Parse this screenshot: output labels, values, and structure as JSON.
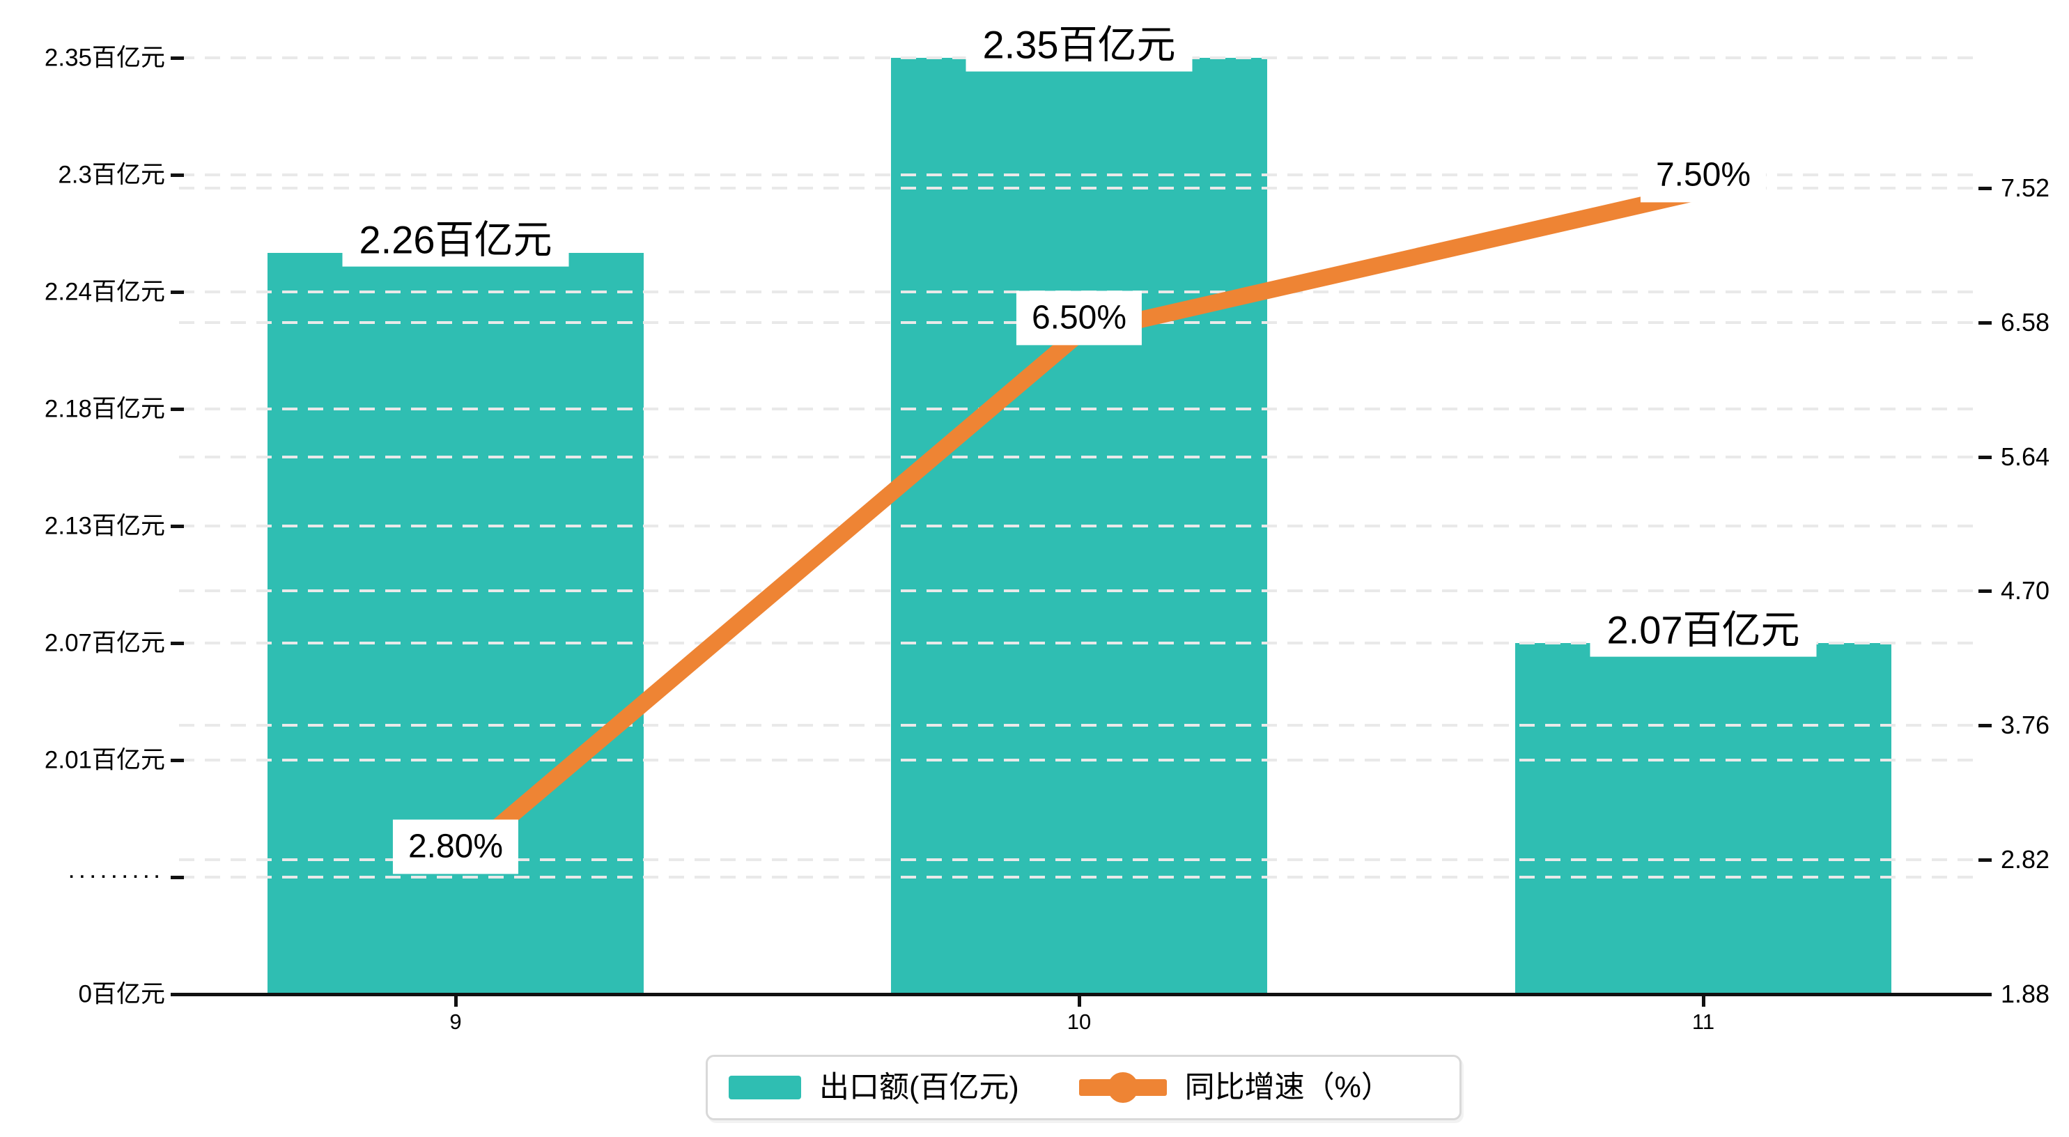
{
  "chart_data": {
    "type": "bar+line combo",
    "categories": [
      "9",
      "10",
      "11"
    ],
    "series": [
      {
        "name": "出口额(百亿元)",
        "type": "bar",
        "values": [
          2.26,
          2.35,
          2.07
        ],
        "data_labels": [
          "2.26百亿元",
          "2.35百亿元",
          "2.07百亿元"
        ],
        "color": "#2fbeb2",
        "axis": "left"
      },
      {
        "name": "同比增速（%）",
        "type": "line",
        "values": [
          2.8,
          6.5,
          7.5
        ],
        "data_labels": [
          "2.80%",
          "6.50%",
          "7.50%"
        ],
        "color": "#ee8434",
        "axis": "right"
      }
    ],
    "left_axis": {
      "tick_labels": [
        "2.35百亿元",
        "2.3百亿元",
        "2.24百亿元",
        "2.18百亿元",
        "2.13百亿元",
        "2.07百亿元",
        "2.01百亿元",
        "·········",
        "0百亿元"
      ],
      "tick_values": [
        2.35,
        2.3,
        2.24,
        2.18,
        2.13,
        2.07,
        2.01,
        null,
        0
      ],
      "has_break": true
    },
    "right_axis": {
      "tick_labels": [
        "7.52",
        "6.58",
        "5.64",
        "4.70",
        "3.76",
        "2.82",
        "1.88"
      ],
      "tick_values": [
        7.52,
        6.58,
        5.64,
        4.7,
        3.76,
        2.82,
        1.88
      ],
      "min": 1.88,
      "max": 7.52
    },
    "legend": {
      "items": [
        {
          "label": "出口额(百亿元)",
          "type": "bar",
          "color": "#2fbeb2"
        },
        {
          "label": "同比增速（%）",
          "type": "line",
          "color": "#ee8434"
        }
      ]
    },
    "grid": "dashed horizontal",
    "background": "#ffffff",
    "colors": {
      "bar": "#2fbeb2",
      "line": "#ee8434",
      "grid": "#e9e9e9",
      "axis": "#111111"
    }
  }
}
